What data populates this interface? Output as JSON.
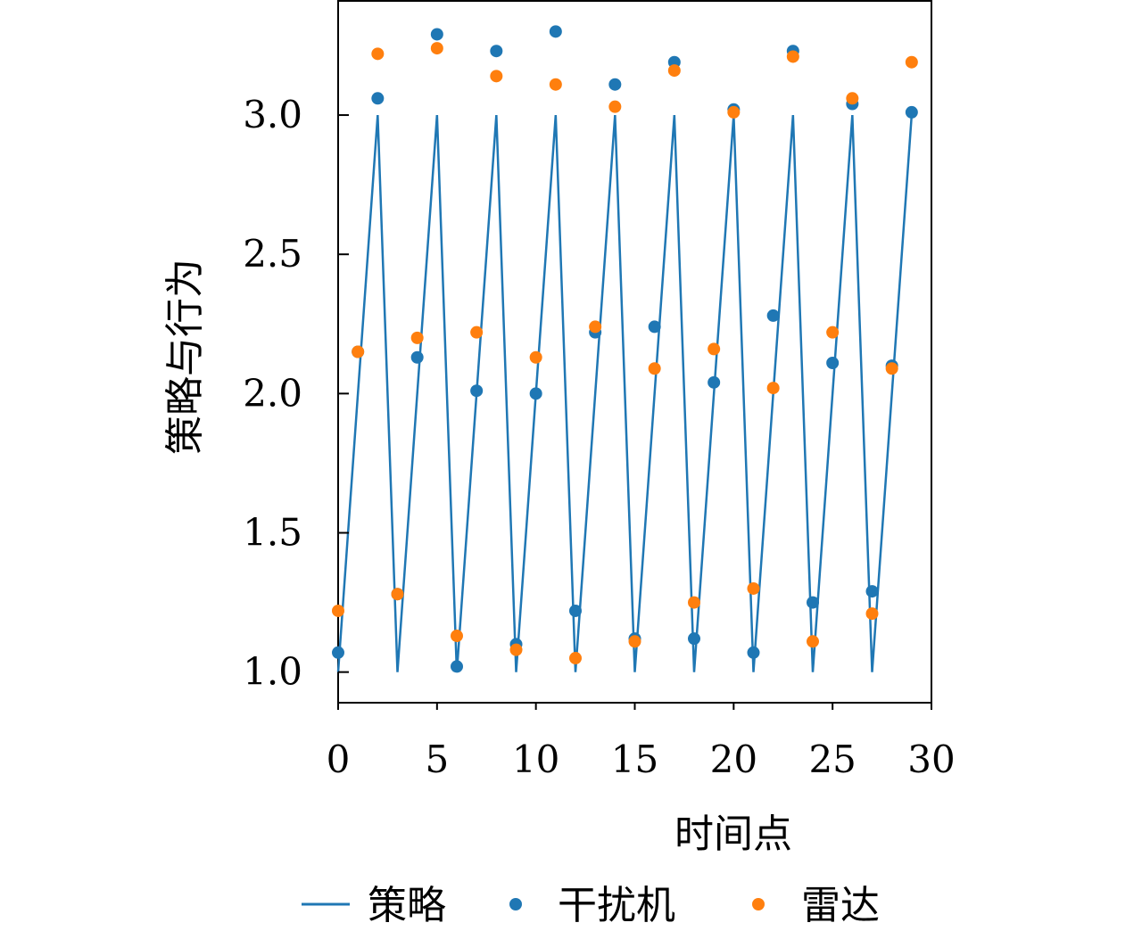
{
  "chart_data": {
    "type": "line",
    "xlabel": "时间点",
    "ylabel": "策略与行为",
    "xlim": [
      0,
      30
    ],
    "ylim": [
      0.89,
      3.41
    ],
    "xticks": [
      0,
      5,
      10,
      15,
      20,
      25,
      30
    ],
    "xtick_labels": [
      "0",
      "5",
      "10",
      "15",
      "20",
      "25",
      "30"
    ],
    "yticks": [
      1.0,
      1.5,
      2.0,
      2.5,
      3.0
    ],
    "ytick_labels": [
      "1.0",
      "1.5",
      "2.0",
      "2.5",
      "3.0"
    ],
    "grid": false,
    "legend_position": "bottom",
    "series": [
      {
        "name": "策略",
        "kind": "line",
        "color": "#1f77b4",
        "x": [
          0,
          1,
          2,
          3,
          4,
          5,
          6,
          7,
          8,
          9,
          10,
          11,
          12,
          13,
          14,
          15,
          16,
          17,
          18,
          19,
          20,
          21,
          22,
          23,
          24,
          25,
          26,
          27,
          28,
          29
        ],
        "y": [
          1,
          2,
          3,
          1,
          2,
          3,
          1,
          2,
          3,
          1,
          2,
          3,
          1,
          2,
          3,
          1,
          2,
          3,
          1,
          2,
          3,
          1,
          2,
          3,
          1,
          2,
          3,
          1,
          2,
          3
        ]
      },
      {
        "name": "干扰机",
        "kind": "scatter",
        "color": "#1f77b4",
        "x": [
          0,
          1,
          2,
          3,
          4,
          5,
          6,
          7,
          8,
          9,
          10,
          11,
          12,
          13,
          14,
          15,
          16,
          17,
          18,
          19,
          20,
          21,
          22,
          23,
          24,
          25,
          26,
          27,
          28,
          29
        ],
        "y": [
          1.07,
          2.15,
          3.06,
          1.28,
          2.13,
          3.29,
          1.02,
          2.01,
          3.23,
          1.1,
          2.0,
          3.3,
          1.22,
          2.22,
          3.11,
          1.12,
          2.24,
          3.19,
          1.12,
          2.04,
          3.02,
          1.07,
          2.28,
          3.23,
          1.25,
          2.11,
          3.04,
          1.29,
          2.1,
          3.01
        ]
      },
      {
        "name": "雷达",
        "kind": "scatter",
        "color": "#ff7f0e",
        "x": [
          0,
          1,
          2,
          3,
          4,
          5,
          6,
          7,
          8,
          9,
          10,
          11,
          12,
          13,
          14,
          15,
          16,
          17,
          18,
          19,
          20,
          21,
          22,
          23,
          24,
          25,
          26,
          27,
          28,
          29
        ],
        "y": [
          1.22,
          2.15,
          3.22,
          1.28,
          2.2,
          3.24,
          1.13,
          2.22,
          3.14,
          1.08,
          2.13,
          3.11,
          1.05,
          2.24,
          3.03,
          1.11,
          2.09,
          3.16,
          1.25,
          2.16,
          3.01,
          1.3,
          2.02,
          3.21,
          1.11,
          2.22,
          3.06,
          1.21,
          2.09,
          3.19
        ]
      }
    ]
  }
}
